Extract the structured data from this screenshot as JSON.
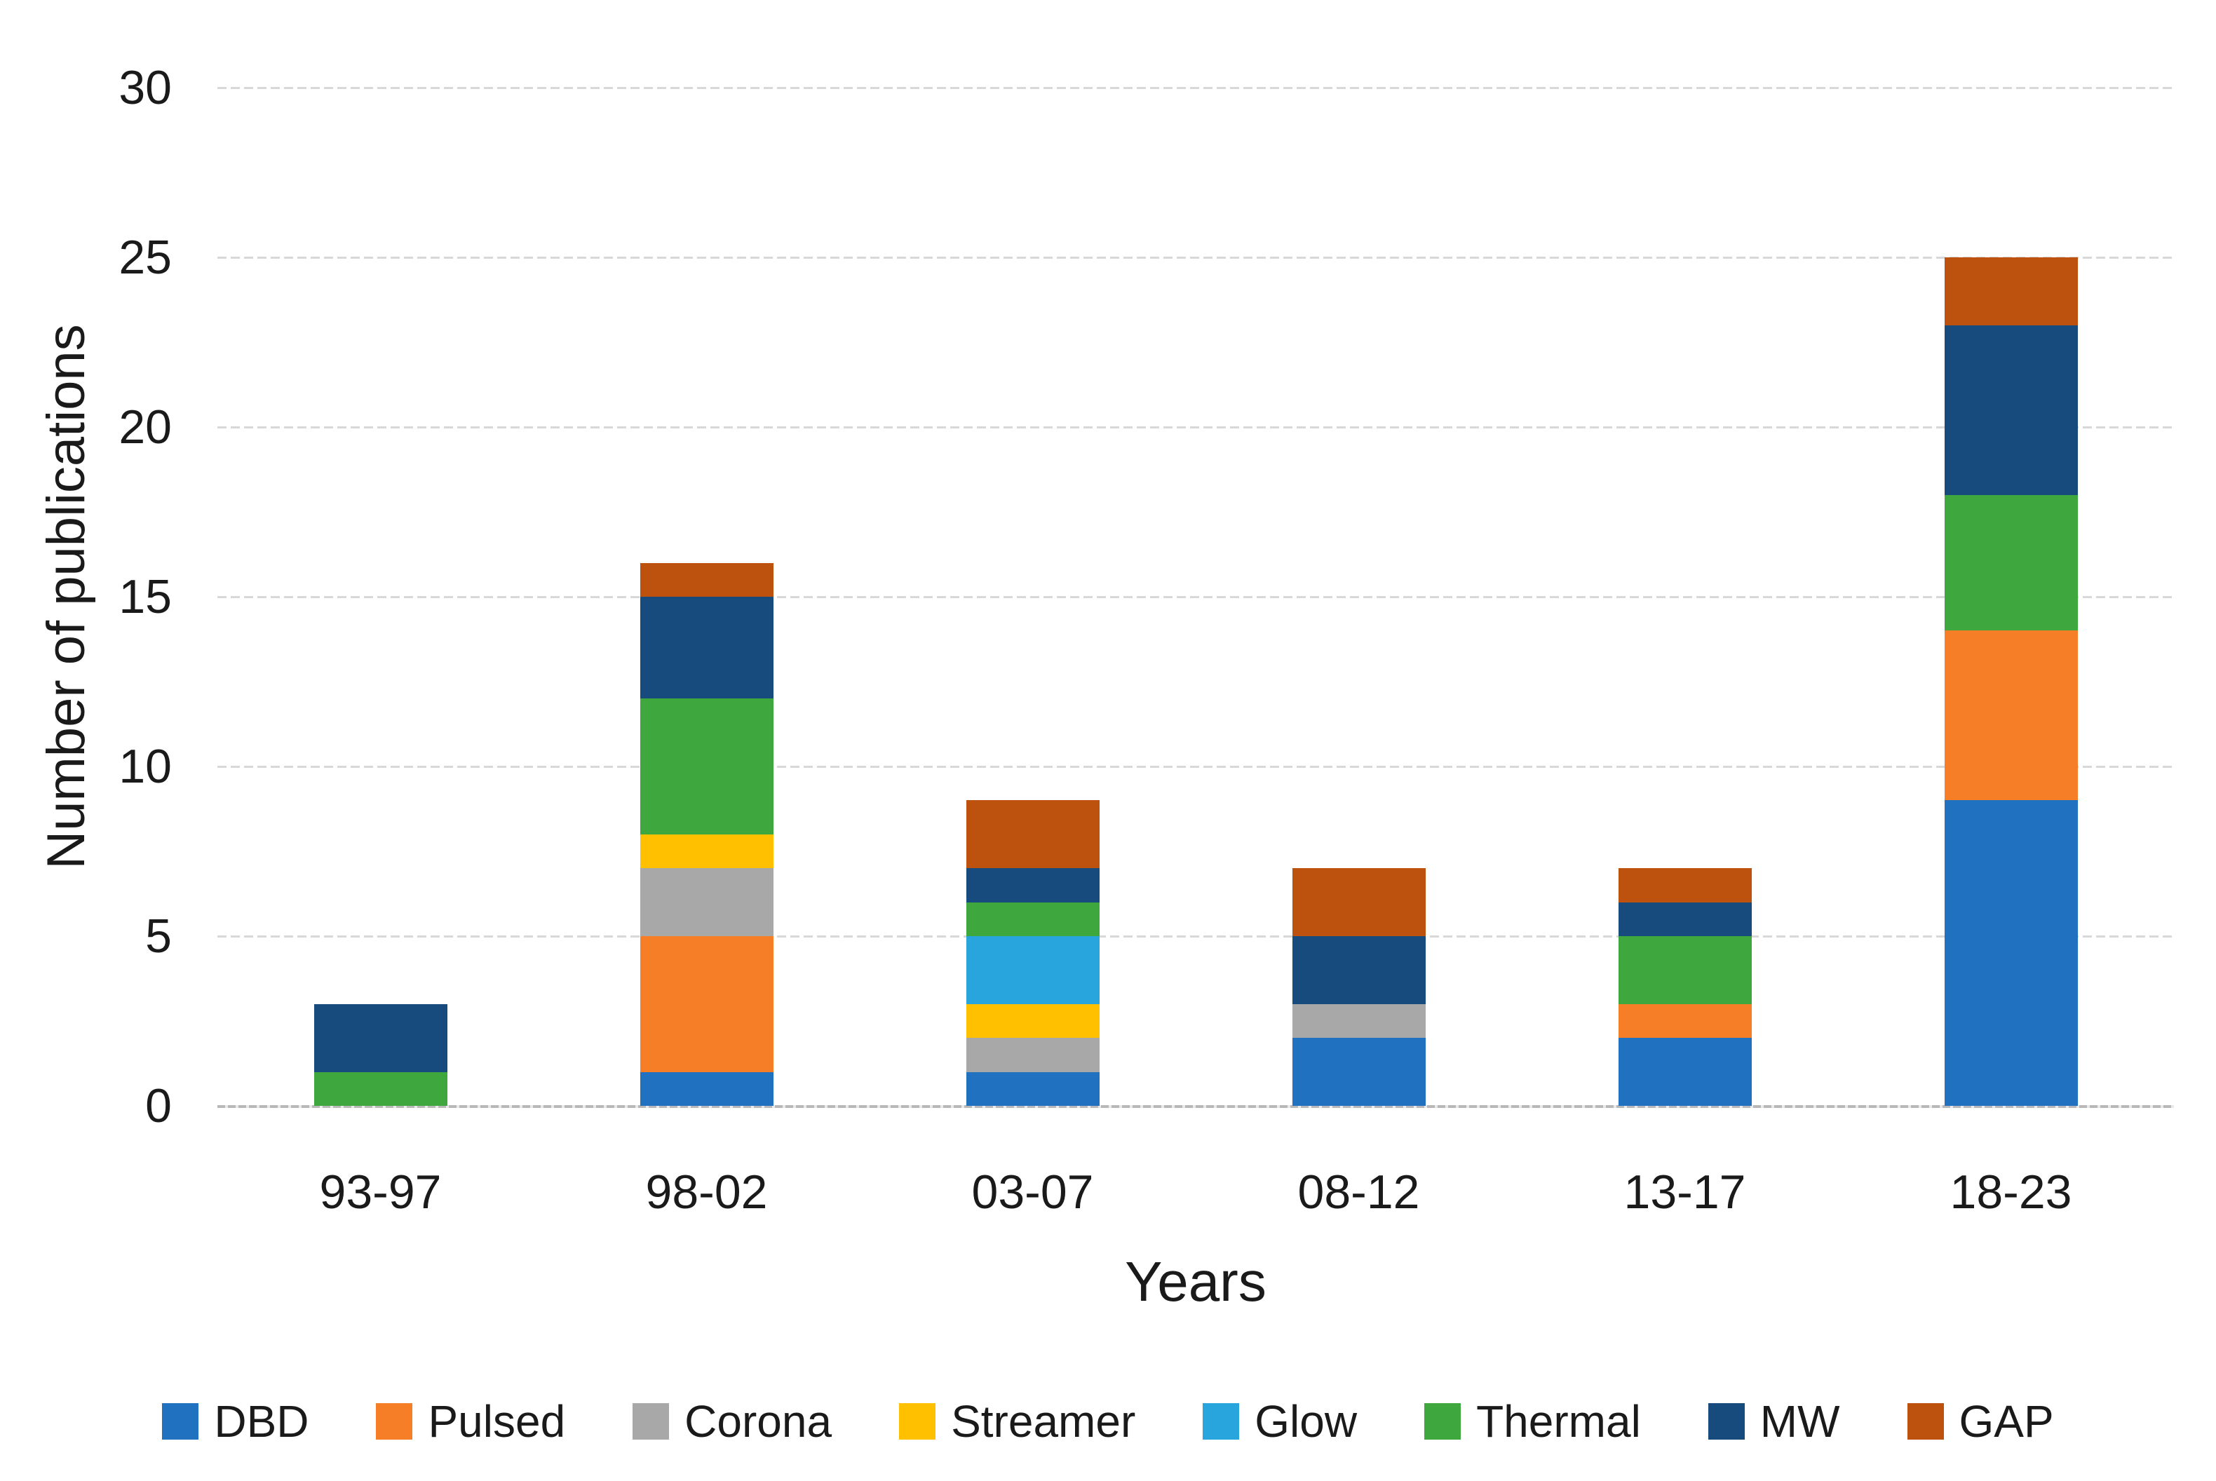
{
  "chart_data": {
    "type": "bar",
    "stacked": true,
    "title": "",
    "xlabel": "Years",
    "ylabel": "Number of publications",
    "categories": [
      "93-97",
      "98-02",
      "03-07",
      "08-12",
      "13-17",
      "18-23"
    ],
    "series": [
      {
        "name": "DBD",
        "color": "#2071C0",
        "values": [
          0,
          1,
          1,
          2,
          2,
          9
        ]
      },
      {
        "name": "Pulsed",
        "color": "#F57E27",
        "values": [
          0,
          4,
          0,
          0,
          1,
          5
        ]
      },
      {
        "name": "Corona",
        "color": "#A8A8A8",
        "values": [
          0,
          2,
          1,
          1,
          0,
          0
        ]
      },
      {
        "name": "Streamer",
        "color": "#FFC000",
        "values": [
          0,
          1,
          1,
          0,
          0,
          0
        ]
      },
      {
        "name": "Glow",
        "color": "#29A5DE",
        "values": [
          0,
          0,
          2,
          0,
          0,
          0
        ]
      },
      {
        "name": "Thermal",
        "color": "#3EA73E",
        "values": [
          1,
          4,
          1,
          0,
          2,
          4
        ]
      },
      {
        "name": "MW",
        "color": "#174B7D",
        "values": [
          2,
          3,
          1,
          2,
          1,
          5
        ]
      },
      {
        "name": "GAP",
        "color": "#BC520E",
        "values": [
          0,
          1,
          2,
          2,
          1,
          2
        ]
      }
    ],
    "totals": [
      3,
      16,
      9,
      7,
      7,
      25
    ],
    "ylim": [
      0,
      30
    ],
    "yticks": [
      0,
      5,
      10,
      15,
      20,
      25,
      30
    ],
    "grid": "horizontal-dashed",
    "legend_position": "bottom"
  }
}
